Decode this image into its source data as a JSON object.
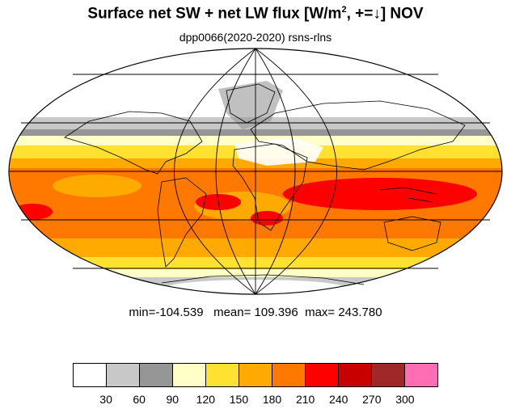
{
  "title": {
    "main": "Surface net SW + net LW flux [W/m",
    "sup": "2",
    "suffix": ", +=↓]  NOV"
  },
  "subtitle": "dpp0066(2020-2020)   rsns-rlns",
  "stats": "min=-104.539   mean= 109.396  max= 243.780",
  "colorbar": {
    "colors": [
      "#ffffff",
      "#c8c8c8",
      "#969696",
      "#ffffc8",
      "#ffe132",
      "#ffaa00",
      "#ff7800",
      "#ff0000",
      "#c80000",
      "#a02828",
      "#ff6eb4"
    ],
    "labels": [
      "30",
      "60",
      "90",
      "120",
      "150",
      "180",
      "210",
      "240",
      "270",
      "300"
    ]
  },
  "colors": {
    "land_outline": "#000000",
    "grid": "#000000"
  }
}
